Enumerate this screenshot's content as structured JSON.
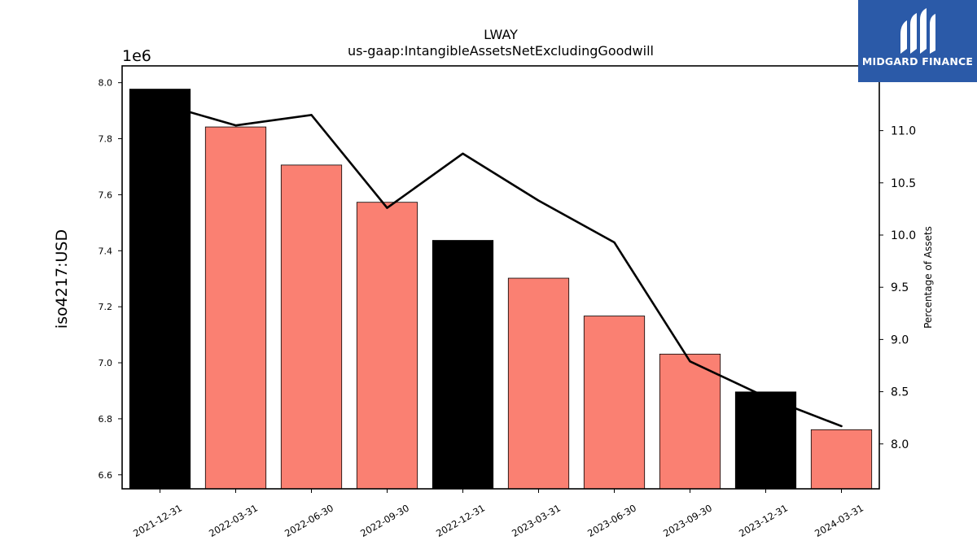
{
  "chart_data": {
    "type": "bar",
    "title": "LWAY",
    "subtitle": "us-gaap:IntangibleAssetsNetExcludingGoodwill",
    "ylabel": "iso4217:USD",
    "y_offset_label": "1e6",
    "y2label": "Percentage of Assets",
    "categories": [
      "2021-12-31",
      "2022-03-31",
      "2022-06-30",
      "2022-09-30",
      "2022-12-31",
      "2023-03-31",
      "2023-06-30",
      "2023-09-30",
      "2023-12-31",
      "2024-03-31"
    ],
    "values": [
      7977000,
      7842000,
      7706000,
      7573000,
      7437000,
      7302000,
      7167000,
      7031000,
      6896000,
      6761000
    ],
    "bar_colors": [
      "#000000",
      "#fa8072",
      "#fa8072",
      "#fa8072",
      "#000000",
      "#fa8072",
      "#fa8072",
      "#fa8072",
      "#000000",
      "#fa8072"
    ],
    "line_series": {
      "name": "",
      "values": [
        11.26,
        11.05,
        11.15,
        10.26,
        10.78,
        10.33,
        9.93,
        8.79,
        8.45,
        8.17
      ]
    },
    "ylim": [
      6550000,
      8060000
    ],
    "y_ticks": [
      6.6,
      6.8,
      7.0,
      7.2,
      7.4,
      7.6,
      7.8,
      8.0
    ],
    "y2lim": [
      7.57,
      11.62
    ],
    "y2_ticks": [
      8.0,
      8.5,
      9.0,
      9.5,
      10.0,
      10.5,
      11.0
    ],
    "grid": false,
    "legend": "none",
    "colors": {
      "annual_bar": "#000000",
      "quarter_bar": "#fa8072",
      "line": "#000000"
    }
  },
  "logo": {
    "text": "MIDGARD FINANCE",
    "background": "#2b5aa8"
  }
}
